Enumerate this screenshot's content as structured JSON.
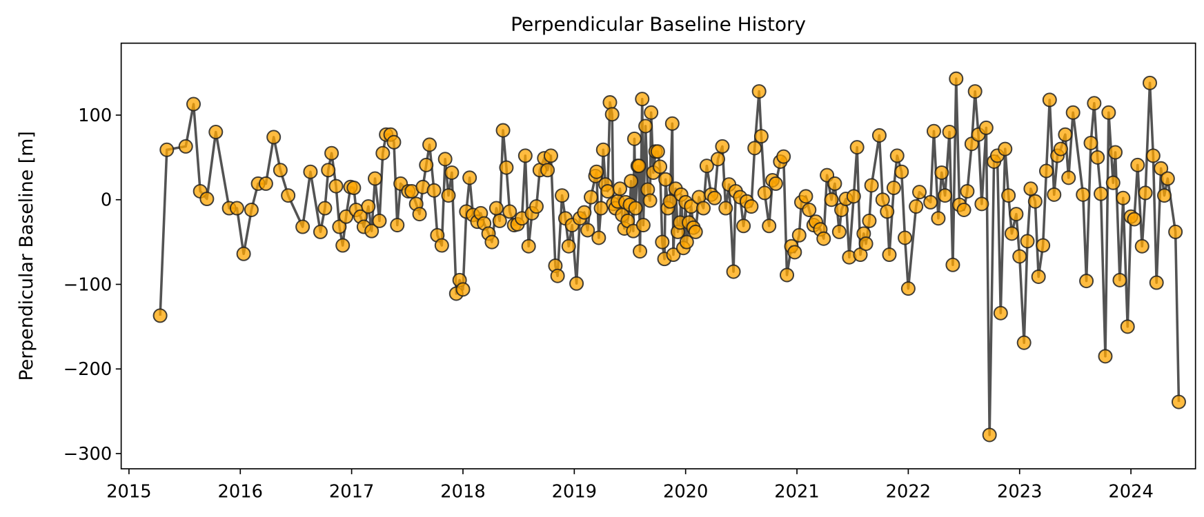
{
  "chart_data": {
    "type": "line",
    "title": "Perpendicular Baseline History",
    "ylabel": "Perpendicular Baseline [m]",
    "line_color": "#404040",
    "marker_color": "#ffa500",
    "marker_edge_color": "#222222",
    "xlim": [
      2014.93,
      2024.58
    ],
    "xticks": [
      2015,
      2016,
      2017,
      2018,
      2019,
      2020,
      2021,
      2022,
      2023,
      2024
    ],
    "ylim": [
      -318,
      185
    ],
    "yticks": [
      {
        "value": 100,
        "label": "100"
      },
      0,
      {
        "value": -100,
        "label": "−100"
      },
      {
        "value": -200,
        "label": "−200"
      },
      {
        "value": -300,
        "label": "−300"
      }
    ],
    "x": [
      2015.28,
      2015.34,
      2015.51,
      2015.58,
      2015.64,
      2015.7,
      2015.78,
      2015.9,
      2015.97,
      2016.03,
      2016.1,
      2016.16,
      2016.23,
      2016.3,
      2016.36,
      2016.43,
      2016.56,
      2016.63,
      2016.72,
      2016.76,
      2016.79,
      2016.82,
      2016.86,
      2016.89,
      2016.92,
      2016.95,
      2016.99,
      2017.02,
      2017.04,
      2017.08,
      2017.11,
      2017.15,
      2017.18,
      2017.21,
      2017.25,
      2017.28,
      2017.31,
      2017.35,
      2017.38,
      2017.41,
      2017.44,
      2017.51,
      2017.54,
      2017.58,
      2017.61,
      2017.64,
      2017.67,
      2017.7,
      2017.74,
      2017.77,
      2017.81,
      2017.84,
      2017.87,
      2017.9,
      2017.94,
      2017.97,
      2018.0,
      2018.03,
      2018.06,
      2018.09,
      2018.13,
      2018.16,
      2018.19,
      2018.23,
      2018.26,
      2018.3,
      2018.33,
      2018.36,
      2018.39,
      2018.42,
      2018.46,
      2018.49,
      2018.53,
      2018.56,
      2018.59,
      2018.62,
      2018.66,
      2018.69,
      2018.73,
      2018.76,
      2018.79,
      2018.83,
      2018.85,
      2018.89,
      2018.92,
      2018.95,
      2018.98,
      2019.02,
      2019.05,
      2019.09,
      2019.12,
      2019.15,
      2019.19,
      2019.2,
      2019.22,
      2019.24,
      2019.26,
      2019.28,
      2019.3,
      2019.32,
      2019.34,
      2019.35,
      2019.37,
      2019.39,
      2019.41,
      2019.43,
      2019.45,
      2019.46,
      2019.48,
      2019.5,
      2019.51,
      2019.53,
      2019.54,
      2019.55,
      2019.57,
      2019.58,
      2019.59,
      2019.61,
      2019.62,
      2019.64,
      2019.66,
      2019.68,
      2019.69,
      2019.71,
      2019.73,
      2019.75,
      2019.77,
      2019.79,
      2019.81,
      2019.82,
      2019.84,
      2019.86,
      2019.88,
      2019.89,
      2019.91,
      2019.93,
      2019.95,
      2019.96,
      2019.98,
      2020.0,
      2020.01,
      2020.03,
      2020.05,
      2020.07,
      2020.09,
      2020.12,
      2020.16,
      2020.19,
      2020.23,
      2020.26,
      2020.29,
      2020.33,
      2020.36,
      2020.39,
      2020.43,
      2020.45,
      2020.49,
      2020.52,
      2020.55,
      2020.59,
      2020.62,
      2020.66,
      2020.68,
      2020.71,
      2020.75,
      2020.78,
      2020.81,
      2020.85,
      2020.88,
      2020.91,
      2020.95,
      2020.98,
      2021.02,
      2021.04,
      2021.08,
      2021.11,
      2021.15,
      2021.17,
      2021.21,
      2021.24,
      2021.27,
      2021.31,
      2021.34,
      2021.38,
      2021.4,
      2021.44,
      2021.47,
      2021.51,
      2021.54,
      2021.57,
      2021.6,
      2021.62,
      2021.65,
      2021.67,
      2021.74,
      2021.77,
      2021.81,
      2021.83,
      2021.87,
      2021.9,
      2021.94,
      2021.97,
      2022.0,
      2022.07,
      2022.1,
      2022.2,
      2022.23,
      2022.27,
      2022.3,
      2022.33,
      2022.37,
      2022.4,
      2022.43,
      2022.46,
      2022.5,
      2022.53,
      2022.57,
      2022.6,
      2022.63,
      2022.66,
      2022.7,
      2022.73,
      2022.77,
      2022.8,
      2022.83,
      2022.87,
      2022.9,
      2022.93,
      2022.97,
      2023.0,
      2023.04,
      2023.07,
      2023.1,
      2023.14,
      2023.17,
      2023.21,
      2023.24,
      2023.27,
      2023.31,
      2023.34,
      2023.37,
      2023.41,
      2023.44,
      2023.48,
      2023.57,
      2023.6,
      2023.64,
      2023.67,
      2023.7,
      2023.73,
      2023.77,
      2023.8,
      2023.84,
      2023.86,
      2023.9,
      2023.93,
      2023.97,
      2024.0,
      2024.03,
      2024.06,
      2024.1,
      2024.13,
      2024.17,
      2024.2,
      2024.23,
      2024.27,
      2024.3,
      2024.33,
      2024.4,
      2024.43
    ],
    "values": [
      -137,
      59,
      63,
      113,
      10,
      1,
      80,
      -10,
      -10,
      -64,
      -12,
      19,
      19,
      74,
      35,
      5,
      -32,
      33,
      -38,
      -10,
      35,
      55,
      16,
      -32,
      -54,
      -20,
      15,
      14,
      -12,
      -20,
      -32,
      -8,
      -37,
      25,
      -25,
      55,
      77,
      77,
      68,
      -30,
      19,
      10,
      10,
      -5,
      -17,
      15,
      41,
      65,
      11,
      -42,
      -54,
      48,
      5,
      32,
      -111,
      -95,
      -106,
      -14,
      26,
      -18,
      -26,
      -16,
      -28,
      -40,
      -50,
      -10,
      -25,
      82,
      38,
      -14,
      -30,
      -29,
      -22,
      52,
      -55,
      -16,
      -8,
      35,
      49,
      35,
      52,
      -78,
      -90,
      5,
      -22,
      -55,
      -30,
      -99,
      -22,
      -15,
      -36,
      3,
      28,
      33,
      -45,
      -10,
      59,
      18,
      10,
      115,
      101,
      -5,
      -10,
      -2,
      13,
      -18,
      -34,
      -3,
      -25,
      -6,
      22,
      -37,
      72,
      -10,
      40,
      40,
      -61,
      119,
      -30,
      87,
      12,
      -1,
      103,
      32,
      57,
      57,
      39,
      -50,
      -70,
      24,
      -10,
      -2,
      90,
      -65,
      13,
      -38,
      -27,
      6,
      -57,
      -3,
      -50,
      -27,
      -8,
      -33,
      -38,
      3,
      -10,
      40,
      6,
      2,
      48,
      63,
      -10,
      18,
      -85,
      10,
      3,
      -31,
      -2,
      -8,
      61,
      128,
      75,
      8,
      -31,
      23,
      19,
      45,
      51,
      -89,
      -55,
      -62,
      -42,
      -3,
      4,
      -12,
      -30,
      -26,
      -35,
      -46,
      29,
      0,
      19,
      -38,
      -12,
      1,
      -68,
      4,
      62,
      -65,
      -40,
      -52,
      -25,
      17,
      76,
      0,
      -14,
      -65,
      14,
      52,
      33,
      -45,
      -105,
      -8,
      9,
      -3,
      81,
      -22,
      32,
      5,
      80,
      -77,
      143,
      -6,
      -12,
      10,
      66,
      128,
      77,
      -5,
      85,
      -278,
      45,
      52,
      -134,
      60,
      5,
      -40,
      -17,
      -67,
      -169,
      -49,
      13,
      -2,
      -91,
      -54,
      34,
      118,
      6,
      52,
      60,
      77,
      26,
      103,
      6,
      -96,
      67,
      114,
      50,
      7,
      -185,
      103,
      20,
      56,
      -95,
      2,
      -150,
      -20,
      -23,
      41,
      -55,
      8,
      138,
      52,
      -98,
      37,
      5,
      25,
      -38,
      -239
    ]
  }
}
